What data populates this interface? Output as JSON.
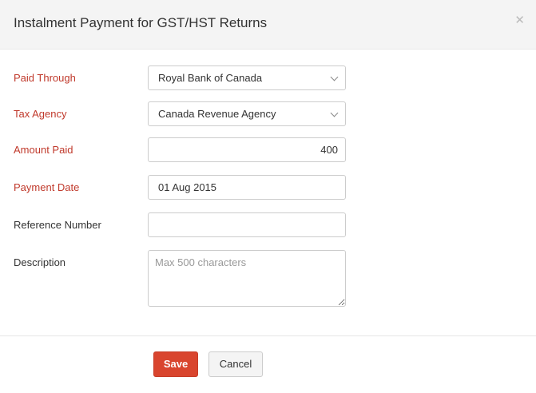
{
  "dialog": {
    "title": "Instalment Payment for GST/HST Returns",
    "close_icon": "close-icon"
  },
  "fields": {
    "paid_through": {
      "label": "Paid Through",
      "value": "Royal Bank of Canada",
      "required": true
    },
    "tax_agency": {
      "label": "Tax Agency",
      "value": "Canada Revenue Agency",
      "required": true
    },
    "amount_paid": {
      "label": "Amount Paid",
      "value": "400",
      "required": true
    },
    "payment_date": {
      "label": "Payment Date",
      "value": "01 Aug 2015",
      "required": true
    },
    "reference_number": {
      "label": "Reference Number",
      "value": ""
    },
    "description": {
      "label": "Description",
      "value": "",
      "placeholder": "Max 500 characters"
    }
  },
  "actions": {
    "save": "Save",
    "cancel": "Cancel"
  },
  "colors": {
    "required_label": "#c0392b",
    "save_button": "#d9452e"
  }
}
